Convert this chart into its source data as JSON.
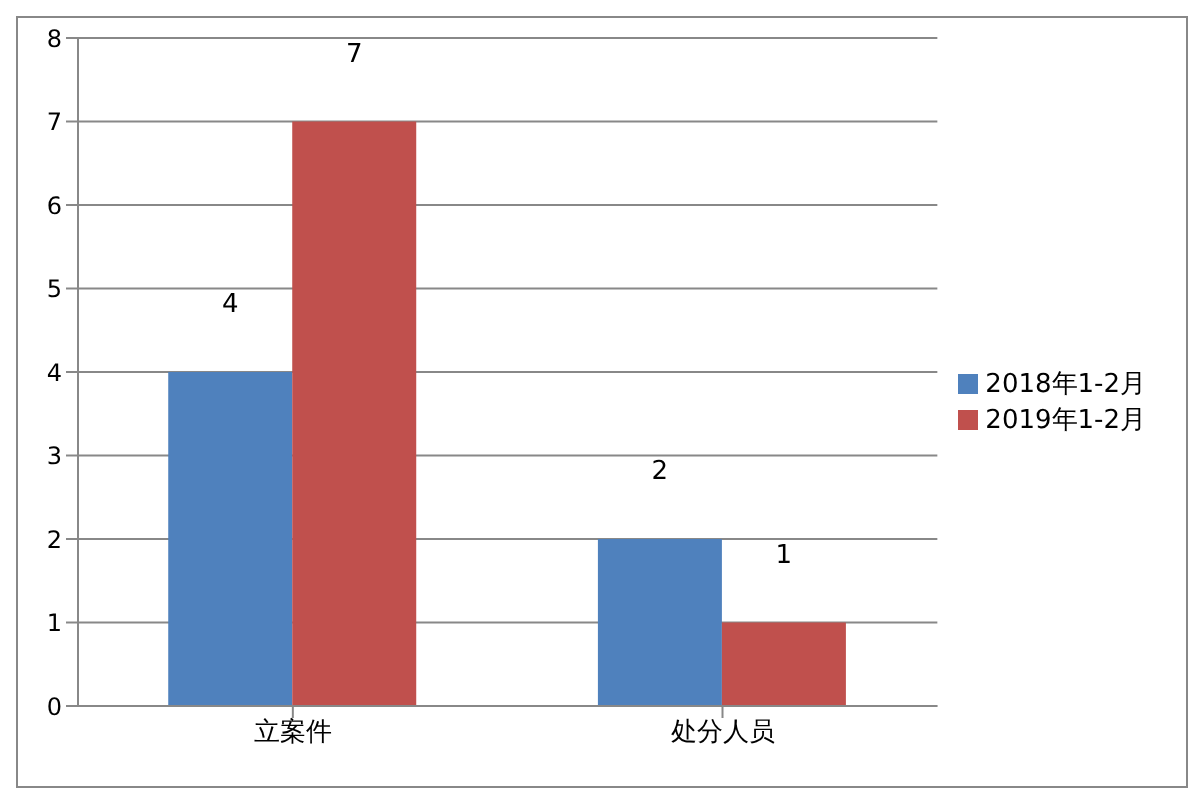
{
  "chart_data": {
    "type": "bar",
    "categories": [
      "立案件",
      "处分人员"
    ],
    "series": [
      {
        "name": "2018年1-2月",
        "color": "#4f81bd",
        "values": [
          4,
          2
        ]
      },
      {
        "name": "2019年1-2月",
        "color": "#c0504d",
        "values": [
          7,
          1
        ]
      }
    ],
    "ylim": [
      0,
      8
    ],
    "yticks": [
      0,
      1,
      2,
      3,
      4,
      5,
      6,
      7,
      8
    ],
    "grid": "y",
    "legend": "right",
    "data_labels": true
  }
}
